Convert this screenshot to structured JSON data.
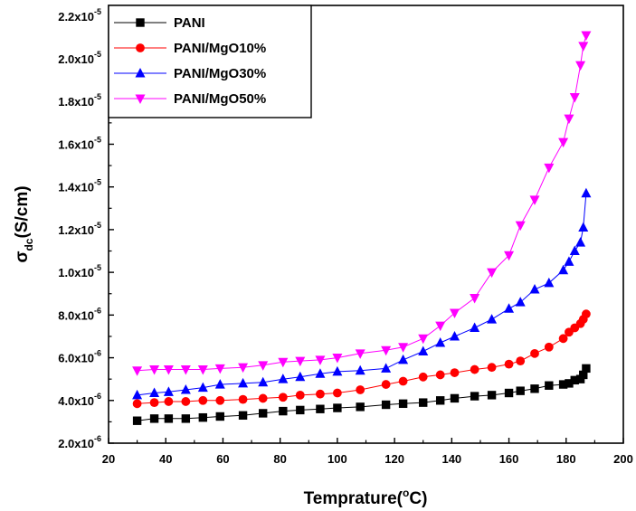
{
  "chart_data": {
    "type": "line",
    "xlabel": "Temprature(",
    "xlabel_sup": "o",
    "xlabel_end": "C)",
    "ylabel_main": "σ",
    "ylabel_sub": "dc",
    "ylabel_end": "(S/cm)",
    "xlim": [
      20,
      200
    ],
    "ylim": [
      2e-06,
      2.25e-05
    ],
    "x_ticks": [
      20,
      40,
      60,
      80,
      100,
      120,
      140,
      160,
      180,
      200
    ],
    "y_ticks": [
      {
        "value": 2e-06,
        "mantissa": "2.0x10",
        "exp": "-6"
      },
      {
        "value": 4e-06,
        "mantissa": "4.0x10",
        "exp": "-6"
      },
      {
        "value": 6e-06,
        "mantissa": "6.0x10",
        "exp": "-6"
      },
      {
        "value": 8e-06,
        "mantissa": "8.0x10",
        "exp": "-6"
      },
      {
        "value": 1e-05,
        "mantissa": "1.0x10",
        "exp": "-5"
      },
      {
        "value": 1.2e-05,
        "mantissa": "1.2x10",
        "exp": "-5"
      },
      {
        "value": 1.4e-05,
        "mantissa": "1.4x10",
        "exp": "-5"
      },
      {
        "value": 1.6e-05,
        "mantissa": "1.6x10",
        "exp": "-5"
      },
      {
        "value": 1.8e-05,
        "mantissa": "1.8x10",
        "exp": "-5"
      },
      {
        "value": 2e-05,
        "mantissa": "2.0x10",
        "exp": "-5"
      },
      {
        "value": 2.2e-05,
        "mantissa": "2.2x10",
        "exp": "-5"
      }
    ],
    "legend_position": "top-left",
    "grid": false,
    "series": [
      {
        "name": "PANI",
        "color": "#000000",
        "marker": "square",
        "x": [
          30,
          36,
          41,
          47,
          53,
          59,
          67,
          74,
          81,
          87,
          94,
          100,
          108,
          117,
          123,
          130,
          136,
          141,
          148,
          154,
          160,
          164,
          169,
          174,
          179,
          181,
          183,
          185,
          186,
          187
        ],
        "y": [
          3.05e-06,
          3.15e-06,
          3.15e-06,
          3.15e-06,
          3.2e-06,
          3.25e-06,
          3.3e-06,
          3.4e-06,
          3.5e-06,
          3.55e-06,
          3.6e-06,
          3.65e-06,
          3.7e-06,
          3.8e-06,
          3.85e-06,
          3.9e-06,
          4e-06,
          4.1e-06,
          4.2e-06,
          4.25e-06,
          4.35e-06,
          4.45e-06,
          4.55e-06,
          4.7e-06,
          4.75e-06,
          4.8e-06,
          4.95e-06,
          5e-06,
          5.2e-06,
          5.5e-06
        ]
      },
      {
        "name": "PANI/MgO10%",
        "color": "#ff0000",
        "marker": "circle",
        "x": [
          30,
          36,
          41,
          47,
          53,
          59,
          67,
          74,
          81,
          87,
          94,
          100,
          108,
          117,
          123,
          130,
          136,
          141,
          148,
          154,
          160,
          164,
          169,
          174,
          179,
          181,
          183,
          185,
          186,
          187
        ],
        "y": [
          3.85e-06,
          3.9e-06,
          3.95e-06,
          3.95e-06,
          4e-06,
          4e-06,
          4.05e-06,
          4.1e-06,
          4.15e-06,
          4.25e-06,
          4.3e-06,
          4.35e-06,
          4.5e-06,
          4.75e-06,
          4.9e-06,
          5.1e-06,
          5.2e-06,
          5.3e-06,
          5.45e-06,
          5.55e-06,
          5.7e-06,
          5.85e-06,
          6.2e-06,
          6.5e-06,
          6.9e-06,
          7.2e-06,
          7.4e-06,
          7.6e-06,
          7.8e-06,
          8.05e-06
        ]
      },
      {
        "name": "PANI/MgO30%",
        "color": "#0000ff",
        "marker": "triangle-up",
        "x": [
          30,
          36,
          41,
          47,
          53,
          59,
          67,
          74,
          81,
          87,
          94,
          100,
          108,
          117,
          123,
          130,
          136,
          141,
          148,
          154,
          160,
          164,
          169,
          174,
          179,
          181,
          183,
          185,
          186,
          187
        ],
        "y": [
          4.25e-06,
          4.35e-06,
          4.4e-06,
          4.5e-06,
          4.6e-06,
          4.75e-06,
          4.8e-06,
          4.85e-06,
          5e-06,
          5.1e-06,
          5.25e-06,
          5.35e-06,
          5.4e-06,
          5.5e-06,
          5.9e-06,
          6.3e-06,
          6.7e-06,
          7e-06,
          7.4e-06,
          7.8e-06,
          8.3e-06,
          8.6e-06,
          9.2e-06,
          9.5e-06,
          1.01e-05,
          1.05e-05,
          1.1e-05,
          1.14e-05,
          1.21e-05,
          1.37e-05
        ]
      },
      {
        "name": "PANI/MgO50%",
        "color": "#ff00ff",
        "marker": "triangle-down",
        "x": [
          30,
          36,
          41,
          47,
          53,
          59,
          67,
          74,
          81,
          87,
          94,
          100,
          108,
          117,
          123,
          130,
          136,
          141,
          148,
          154,
          160,
          164,
          169,
          174,
          179,
          181,
          183,
          185,
          186,
          187
        ],
        "y": [
          5.4e-06,
          5.45e-06,
          5.45e-06,
          5.45e-06,
          5.45e-06,
          5.5e-06,
          5.55e-06,
          5.65e-06,
          5.8e-06,
          5.85e-06,
          5.9e-06,
          6e-06,
          6.2e-06,
          6.35e-06,
          6.5e-06,
          6.9e-06,
          7.5e-06,
          8.1e-06,
          8.8e-06,
          1e-05,
          1.08e-05,
          1.22e-05,
          1.34e-05,
          1.49e-05,
          1.61e-05,
          1.72e-05,
          1.82e-05,
          1.97e-05,
          2.06e-05,
          2.11e-05
        ]
      }
    ]
  }
}
